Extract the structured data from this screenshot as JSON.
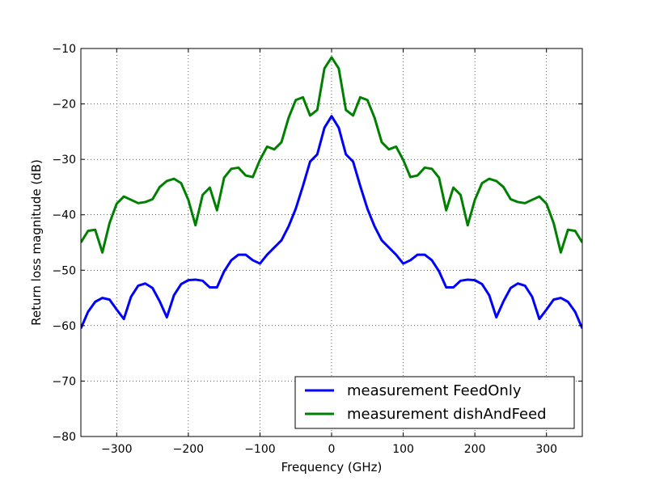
{
  "chart_data": {
    "type": "line",
    "title": "",
    "xlabel": "Frequency (GHz)",
    "ylabel": "Return loss magnitude (dB)",
    "xlim": [
      -350,
      350
    ],
    "ylim": [
      -80,
      -10
    ],
    "xticks": [
      -300,
      -200,
      -100,
      0,
      100,
      200,
      300
    ],
    "yticks": [
      -80,
      -70,
      -60,
      -50,
      -40,
      -30,
      -20,
      -10
    ],
    "xtick_labels": [
      "−300",
      "−200",
      "−100",
      "0",
      "100",
      "200",
      "300"
    ],
    "ytick_labels": [
      "−80",
      "−70",
      "−60",
      "−50",
      "−40",
      "−30",
      "−20",
      "−10"
    ],
    "grid": true,
    "legend_position": "lower-right",
    "colors": {
      "FeedOnly": "#0000ff",
      "dishAndFeed": "#008000"
    },
    "x": [
      -350,
      -340,
      -330,
      -320,
      -310,
      -300,
      -290,
      -280,
      -270,
      -260,
      -250,
      -240,
      -230,
      -220,
      -210,
      -200,
      -190,
      -180,
      -170,
      -160,
      -150,
      -140,
      -130,
      -120,
      -110,
      -100,
      -90,
      -80,
      -70,
      -60,
      -50,
      -40,
      -30,
      -20,
      -10,
      0,
      10,
      20,
      30,
      40,
      50,
      60,
      70,
      80,
      90,
      100,
      110,
      120,
      130,
      140,
      150,
      160,
      170,
      180,
      190,
      200,
      210,
      220,
      230,
      240,
      250,
      260,
      270,
      280,
      290,
      300,
      310,
      320,
      330,
      340,
      350
    ],
    "series": [
      {
        "name": "measurement FeedOnly",
        "color": "#0000ff",
        "values": [
          -60.5,
          -57.5,
          -55.7,
          -55.0,
          -55.3,
          -57.1,
          -58.8,
          -54.8,
          -52.8,
          -52.4,
          -53.2,
          -55.6,
          -58.5,
          -54.5,
          -52.5,
          -51.8,
          -51.7,
          -51.9,
          -53.1,
          -53.1,
          -50.2,
          -48.2,
          -47.2,
          -47.2,
          -48.2,
          -48.8,
          -47.2,
          -45.9,
          -44.6,
          -42.1,
          -38.9,
          -34.8,
          -30.4,
          -29.1,
          -24.3,
          -22.2,
          -24.3,
          -29.1,
          -30.4,
          -34.8,
          -38.9,
          -42.1,
          -44.6,
          -45.9,
          -47.2,
          -48.8,
          -48.2,
          -47.2,
          -47.2,
          -48.2,
          -50.2,
          -53.1,
          -53.1,
          -51.9,
          -51.7,
          -51.8,
          -52.5,
          -54.5,
          -58.5,
          -55.6,
          -53.2,
          -52.4,
          -52.8,
          -54.8,
          -58.8,
          -57.1,
          -55.3,
          -55.0,
          -55.7,
          -57.5,
          -60.5
        ]
      },
      {
        "name": "measurement dishAndFeed",
        "color": "#008000",
        "values": [
          -45.0,
          -42.9,
          -42.7,
          -46.8,
          -41.5,
          -38.0,
          -36.7,
          -37.3,
          -37.9,
          -37.7,
          -37.2,
          -35.0,
          -33.9,
          -33.5,
          -34.3,
          -37.3,
          -41.9,
          -36.4,
          -35.1,
          -39.2,
          -33.3,
          -31.7,
          -31.5,
          -32.9,
          -33.2,
          -30.1,
          -27.7,
          -28.2,
          -26.9,
          -22.5,
          -19.3,
          -18.8,
          -22.1,
          -21.1,
          -13.6,
          -11.6,
          -13.6,
          -21.1,
          -22.1,
          -18.8,
          -19.3,
          -22.5,
          -26.9,
          -28.2,
          -27.7,
          -30.1,
          -33.2,
          -32.9,
          -31.5,
          -31.7,
          -33.3,
          -39.2,
          -35.1,
          -36.4,
          -41.9,
          -37.3,
          -34.3,
          -33.5,
          -33.9,
          -35.0,
          -37.2,
          -37.7,
          -37.9,
          -37.3,
          -36.7,
          -38.0,
          -41.5,
          -46.8,
          -42.7,
          -42.9,
          -45.0
        ]
      }
    ]
  }
}
